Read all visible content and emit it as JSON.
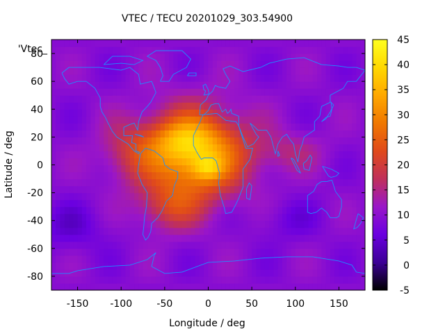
{
  "chart_data": {
    "type": "heatmap",
    "title": "VTEC / TECU 20201029_303.54900",
    "xlabel": "Longitude / deg",
    "ylabel": "Latitude / deg",
    "xlim": [
      -180,
      180
    ],
    "ylim": [
      -90,
      90
    ],
    "xticks": [
      -150,
      -100,
      -50,
      0,
      50,
      100,
      150
    ],
    "yticks": [
      -80,
      -60,
      -40,
      -20,
      0,
      20,
      40,
      60,
      80
    ],
    "key_label": "'Vtec_",
    "colorbar": {
      "range": [
        -5,
        45
      ],
      "ticks": [
        -5,
        0,
        5,
        10,
        15,
        20,
        25,
        30,
        35,
        40,
        45
      ],
      "colors": [
        "#000000",
        "#3c0096",
        "#6a00e0",
        "#9a16c8",
        "#c0305a",
        "#e04a1a",
        "#f07800",
        "#ffa800",
        "#ffd800",
        "#ffff20"
      ]
    },
    "field_model": {
      "background_tecu": 9.5,
      "features": [
        {
          "name": "equatorial-anomaly-core",
          "lon": -15,
          "lat": 8,
          "amp_tecu": 26,
          "lon_sigma_deg": 40,
          "lat_sigma_deg": 22
        },
        {
          "name": "northern-crest",
          "lon": -30,
          "lat": 18,
          "amp_tecu": 8,
          "lon_sigma_deg": 25,
          "lat_sigma_deg": 10
        },
        {
          "name": "peak-west-africa",
          "lon": 0,
          "lat": -2,
          "amp_tecu": 9,
          "lon_sigma_deg": 12,
          "lat_sigma_deg": 6
        },
        {
          "name": "south-atlantic-extension",
          "lon": -45,
          "lat": -30,
          "amp_tecu": 9,
          "lon_sigma_deg": 25,
          "lat_sigma_deg": 12
        },
        {
          "name": "west-extension",
          "lon": -90,
          "lat": 10,
          "amp_tecu": 7,
          "lon_sigma_deg": 25,
          "lat_sigma_deg": 15
        },
        {
          "name": "indian-ocean-tongue",
          "lon": 90,
          "lat": 10,
          "amp_tecu": 5,
          "lon_sigma_deg": 30,
          "lat_sigma_deg": 10
        },
        {
          "name": "southern-low-pacific",
          "lon": -160,
          "lat": -45,
          "amp_tecu": -4,
          "lon_sigma_deg": 30,
          "lat_sigma_deg": 12
        },
        {
          "name": "southern-low-indian",
          "lon": 90,
          "lat": -40,
          "amp_tecu": -3,
          "lon_sigma_deg": 25,
          "lat_sigma_deg": 10
        }
      ],
      "grid_step_deg": 5
    }
  },
  "overlay": {
    "coastline_color": "#1e90ff",
    "coastlines": [
      {
        "name": "north-america",
        "points": [
          [
            -168,
            66
          ],
          [
            -160,
            70
          ],
          [
            -140,
            70
          ],
          [
            -125,
            70
          ],
          [
            -100,
            68
          ],
          [
            -90,
            70
          ],
          [
            -80,
            65
          ],
          [
            -78,
            58
          ],
          [
            -65,
            60
          ],
          [
            -60,
            52
          ],
          [
            -66,
            45
          ],
          [
            -70,
            42
          ],
          [
            -76,
            38
          ],
          [
            -80,
            31
          ],
          [
            -81,
            25
          ],
          [
            -85,
            30
          ],
          [
            -90,
            29
          ],
          [
            -97,
            27
          ],
          [
            -97,
            21
          ],
          [
            -90,
            21
          ],
          [
            -87,
            21
          ],
          [
            -88,
            16
          ],
          [
            -83,
            15
          ],
          [
            -83,
            10
          ],
          [
            -79,
            9
          ],
          [
            -80,
            8
          ],
          [
            -85,
            10
          ],
          [
            -92,
            15
          ],
          [
            -105,
            20
          ],
          [
            -110,
            24
          ],
          [
            -115,
            30
          ],
          [
            -118,
            34
          ],
          [
            -122,
            38
          ],
          [
            -124,
            42
          ],
          [
            -124,
            48
          ],
          [
            -130,
            55
          ],
          [
            -140,
            60
          ],
          [
            -150,
            60
          ],
          [
            -160,
            58
          ],
          [
            -165,
            62
          ],
          [
            -168,
            66
          ]
        ]
      },
      {
        "name": "south-america",
        "points": [
          [
            -78,
            8
          ],
          [
            -72,
            12
          ],
          [
            -62,
            10
          ],
          [
            -52,
            5
          ],
          [
            -50,
            0
          ],
          [
            -44,
            -3
          ],
          [
            -35,
            -5
          ],
          [
            -35,
            -9
          ],
          [
            -39,
            -15
          ],
          [
            -41,
            -22
          ],
          [
            -48,
            -26
          ],
          [
            -53,
            -33
          ],
          [
            -58,
            -38
          ],
          [
            -65,
            -42
          ],
          [
            -66,
            -48
          ],
          [
            -69,
            -52
          ],
          [
            -72,
            -54
          ],
          [
            -75,
            -50
          ],
          [
            -74,
            -44
          ],
          [
            -73,
            -37
          ],
          [
            -71,
            -30
          ],
          [
            -70,
            -20
          ],
          [
            -76,
            -14
          ],
          [
            -81,
            -6
          ],
          [
            -80,
            0
          ],
          [
            -78,
            8
          ]
        ]
      },
      {
        "name": "africa",
        "points": [
          [
            -17,
            21
          ],
          [
            -10,
            30
          ],
          [
            -6,
            36
          ],
          [
            10,
            37
          ],
          [
            20,
            32
          ],
          [
            32,
            31
          ],
          [
            35,
            28
          ],
          [
            43,
            12
          ],
          [
            51,
            12
          ],
          [
            48,
            4
          ],
          [
            40,
            -3
          ],
          [
            40,
            -10
          ],
          [
            40,
            -16
          ],
          [
            35,
            -24
          ],
          [
            32,
            -28
          ],
          [
            27,
            -34
          ],
          [
            20,
            -35
          ],
          [
            18,
            -30
          ],
          [
            14,
            -22
          ],
          [
            12,
            -13
          ],
          [
            13,
            -6
          ],
          [
            9,
            3
          ],
          [
            5,
            5
          ],
          [
            -5,
            5
          ],
          [
            -8,
            4
          ],
          [
            -13,
            9
          ],
          [
            -17,
            14
          ],
          [
            -17,
            21
          ]
        ]
      },
      {
        "name": "eurasia",
        "points": [
          [
            -10,
            36
          ],
          [
            -9,
            43
          ],
          [
            -2,
            47
          ],
          [
            0,
            50
          ],
          [
            5,
            53
          ],
          [
            8,
            57
          ],
          [
            12,
            56
          ],
          [
            20,
            55
          ],
          [
            25,
            60
          ],
          [
            20,
            65
          ],
          [
            17,
            69
          ],
          [
            25,
            71
          ],
          [
            40,
            67
          ],
          [
            60,
            70
          ],
          [
            70,
            73
          ],
          [
            90,
            76
          ],
          [
            110,
            77
          ],
          [
            130,
            72
          ],
          [
            150,
            71
          ],
          [
            160,
            70
          ],
          [
            170,
            70
          ],
          [
            180,
            68
          ],
          [
            170,
            60
          ],
          [
            160,
            60
          ],
          [
            155,
            55
          ],
          [
            140,
            50
          ],
          [
            140,
            45
          ],
          [
            130,
            42
          ],
          [
            128,
            35
          ],
          [
            122,
            31
          ],
          [
            122,
            25
          ],
          [
            110,
            20
          ],
          [
            108,
            15
          ],
          [
            105,
            10
          ],
          [
            103,
            2
          ],
          [
            100,
            8
          ],
          [
            98,
            15
          ],
          [
            94,
            18
          ],
          [
            90,
            22
          ],
          [
            85,
            20
          ],
          [
            80,
            15
          ],
          [
            77,
            8
          ],
          [
            72,
            20
          ],
          [
            67,
            25
          ],
          [
            57,
            25
          ],
          [
            52,
            28
          ],
          [
            48,
            30
          ],
          [
            55,
            22
          ],
          [
            58,
            20
          ],
          [
            52,
            15
          ],
          [
            45,
            13
          ],
          [
            40,
            20
          ],
          [
            35,
            28
          ],
          [
            35,
            35
          ],
          [
            27,
            37
          ],
          [
            26,
            40
          ],
          [
            24,
            38
          ],
          [
            22,
            37
          ],
          [
            20,
            40
          ],
          [
            16,
            38
          ],
          [
            12,
            44
          ],
          [
            8,
            44
          ],
          [
            3,
            43
          ],
          [
            0,
            39
          ],
          [
            -5,
            36
          ],
          [
            -10,
            36
          ]
        ]
      },
      {
        "name": "australia",
        "points": [
          [
            114,
            -22
          ],
          [
            114,
            -34
          ],
          [
            118,
            -35
          ],
          [
            124,
            -34
          ],
          [
            130,
            -31
          ],
          [
            136,
            -34
          ],
          [
            140,
            -38
          ],
          [
            147,
            -38
          ],
          [
            150,
            -37
          ],
          [
            153,
            -30
          ],
          [
            153,
            -25
          ],
          [
            146,
            -19
          ],
          [
            142,
            -11
          ],
          [
            136,
            -12
          ],
          [
            130,
            -12
          ],
          [
            125,
            -14
          ],
          [
            121,
            -19
          ],
          [
            114,
            -22
          ]
        ]
      },
      {
        "name": "greenland",
        "points": [
          [
            -55,
            60
          ],
          [
            -45,
            60
          ],
          [
            -40,
            65
          ],
          [
            -25,
            70
          ],
          [
            -20,
            76
          ],
          [
            -30,
            82
          ],
          [
            -60,
            82
          ],
          [
            -70,
            78
          ],
          [
            -60,
            75
          ],
          [
            -55,
            70
          ],
          [
            -52,
            64
          ],
          [
            -55,
            60
          ]
        ]
      },
      {
        "name": "antarctica",
        "points": [
          [
            -180,
            -78
          ],
          [
            -160,
            -78
          ],
          [
            -150,
            -76
          ],
          [
            -120,
            -73
          ],
          [
            -90,
            -72
          ],
          [
            -70,
            -68
          ],
          [
            -60,
            -63
          ],
          [
            -62,
            -65
          ],
          [
            -65,
            -73
          ],
          [
            -50,
            -78
          ],
          [
            -30,
            -77
          ],
          [
            0,
            -70
          ],
          [
            30,
            -69
          ],
          [
            60,
            -67
          ],
          [
            90,
            -66
          ],
          [
            120,
            -66
          ],
          [
            150,
            -69
          ],
          [
            165,
            -72
          ],
          [
            170,
            -77
          ],
          [
            180,
            -78
          ]
        ]
      },
      {
        "name": "madagascar",
        "points": [
          [
            44,
            -17
          ],
          [
            47,
            -13
          ],
          [
            50,
            -15
          ],
          [
            48,
            -25
          ],
          [
            44,
            -24
          ],
          [
            44,
            -17
          ]
        ]
      },
      {
        "name": "great-britain",
        "points": [
          [
            -5,
            50
          ],
          [
            1,
            51
          ],
          [
            0,
            54
          ],
          [
            -3,
            58
          ],
          [
            -6,
            57
          ],
          [
            -5,
            54
          ],
          [
            -3,
            53
          ],
          [
            -5,
            50
          ]
        ]
      },
      {
        "name": "japan",
        "points": [
          [
            130,
            31
          ],
          [
            135,
            34
          ],
          [
            140,
            35
          ],
          [
            142,
            40
          ],
          [
            141,
            45
          ],
          [
            144,
            43
          ],
          [
            140,
            38
          ],
          [
            135,
            33
          ],
          [
            130,
            31
          ]
        ]
      },
      {
        "name": "new-guinea",
        "points": [
          [
            131,
            -1
          ],
          [
            141,
            -3
          ],
          [
            150,
            -6
          ],
          [
            147,
            -8
          ],
          [
            141,
            -9
          ],
          [
            138,
            -8
          ],
          [
            131,
            -1
          ]
        ]
      },
      {
        "name": "borneo",
        "points": [
          [
            109,
            1
          ],
          [
            113,
            3
          ],
          [
            117,
            7
          ],
          [
            119,
            5
          ],
          [
            116,
            -4
          ],
          [
            110,
            -3
          ],
          [
            109,
            1
          ]
        ]
      },
      {
        "name": "sumatra",
        "points": [
          [
            95,
            5
          ],
          [
            98,
            4
          ],
          [
            104,
            -3
          ],
          [
            106,
            -6
          ],
          [
            102,
            -4
          ],
          [
            95,
            5
          ]
        ]
      },
      {
        "name": "new-zealand",
        "points": [
          [
            172,
            -35
          ],
          [
            178,
            -38
          ],
          [
            175,
            -42
          ],
          [
            171,
            -45
          ],
          [
            167,
            -46
          ],
          [
            172,
            -35
          ]
        ]
      },
      {
        "name": "iceland",
        "points": [
          [
            -24,
            64
          ],
          [
            -14,
            64
          ],
          [
            -14,
            66
          ],
          [
            -22,
            66
          ],
          [
            -24,
            64
          ]
        ]
      },
      {
        "name": "cuba",
        "points": [
          [
            -84,
            22
          ],
          [
            -74,
            20
          ],
          [
            -77,
            21
          ],
          [
            -84,
            22
          ]
        ]
      },
      {
        "name": "sri-lanka",
        "points": [
          [
            80,
            6
          ],
          [
            82,
            7
          ],
          [
            80,
            10
          ],
          [
            80,
            6
          ]
        ]
      },
      {
        "name": "canadian-arctic",
        "points": [
          [
            -120,
            72
          ],
          [
            -100,
            73
          ],
          [
            -85,
            72
          ],
          [
            -75,
            75
          ],
          [
            -90,
            78
          ],
          [
            -110,
            78
          ],
          [
            -120,
            72
          ]
        ]
      }
    ]
  }
}
